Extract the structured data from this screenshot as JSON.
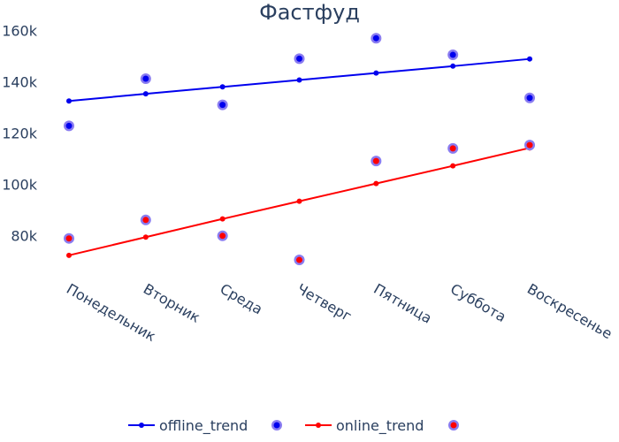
{
  "chart_data": {
    "type": "line",
    "title": "Фастфуд",
    "xlabel": "",
    "ylabel": "",
    "categories": [
      "Понедельник",
      "Вторник",
      "Среда",
      "Четверг",
      "Пятница",
      "Суббота",
      "Воскресенье"
    ],
    "ylim": [
      65000,
      165000
    ],
    "yticks": [
      80000,
      100000,
      120000,
      140000,
      160000
    ],
    "ytick_labels": [
      "80k",
      "100k",
      "120k",
      "140k",
      "160k"
    ],
    "grid": false,
    "legend_position": "bottom",
    "series": [
      {
        "name": "offline_trend",
        "kind": "line",
        "color": "#0000ee",
        "values": [
          132500,
          135300,
          138000,
          140700,
          143400,
          146100,
          148900
        ]
      },
      {
        "name": "",
        "kind": "scatter",
        "color": "#0000ee",
        "halo": "#8a7cf0",
        "values": [
          122800,
          141200,
          131000,
          149000,
          157000,
          150500,
          133700
        ]
      },
      {
        "name": "online_trend",
        "kind": "line",
        "color": "#ff0000",
        "values": [
          72300,
          79400,
          86500,
          93400,
          100300,
          107200,
          114200
        ]
      },
      {
        "name": "",
        "kind": "scatter",
        "color": "#ff0000",
        "halo": "#8a7cf0",
        "values": [
          78900,
          86100,
          79900,
          70500,
          109100,
          114000,
          115300
        ]
      }
    ]
  }
}
